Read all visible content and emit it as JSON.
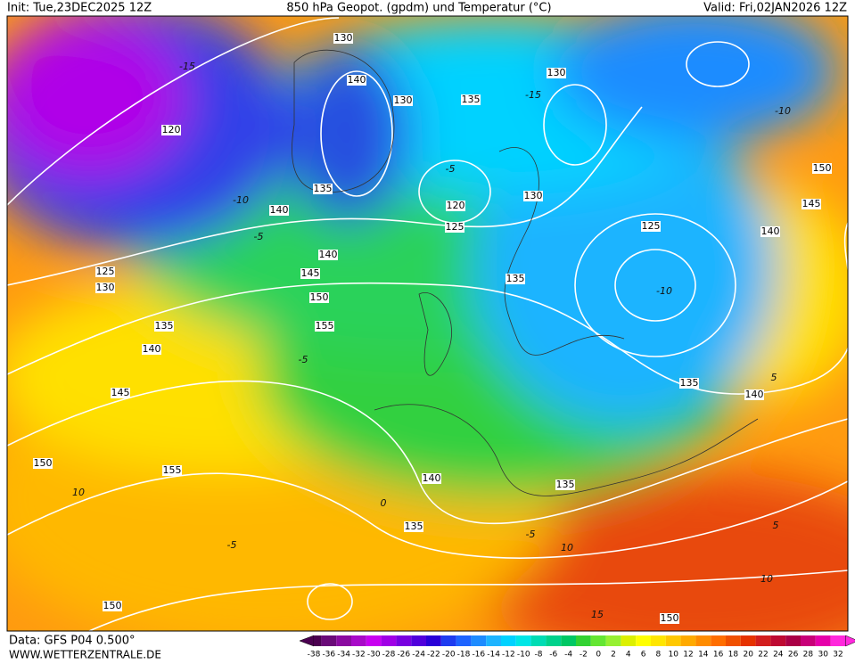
{
  "header": {
    "init": "Init: Tue,23DEC2025 12Z",
    "title": "850 hPa Geopot. (gpdm) und Temperatur (°C)",
    "valid": "Valid: Fri,02JAN2026 12Z"
  },
  "footer": {
    "data": "Data: GFS P04 0.500°",
    "site": "WWW.WETTERZENTRALE.DE"
  },
  "colorbar": {
    "labels": [
      -38,
      -36,
      -34,
      -32,
      -30,
      -28,
      -26,
      -24,
      -22,
      -20,
      -18,
      -16,
      -14,
      -12,
      -10,
      -8,
      -6,
      -4,
      -2,
      0,
      2,
      4,
      6,
      8,
      10,
      12,
      14,
      16,
      18,
      20,
      22,
      24,
      26,
      28,
      30,
      32
    ],
    "colors": [
      "#4b0050",
      "#6a0a78",
      "#8a0aa0",
      "#a80ac8",
      "#c800f0",
      "#a000e6",
      "#7800e0",
      "#5000dc",
      "#2800d8",
      "#1e3cf0",
      "#1e64ff",
      "#1e8cff",
      "#1eb4ff",
      "#00d2ff",
      "#00e6e6",
      "#00dcb4",
      "#00d28c",
      "#00c864",
      "#32d232",
      "#64e632",
      "#96f032",
      "#dcf000",
      "#ffff00",
      "#ffe600",
      "#ffc800",
      "#ffaa00",
      "#ff8c00",
      "#ff6e00",
      "#f05000",
      "#e63200",
      "#d21e1e",
      "#be0a32",
      "#aa0046",
      "#c80078",
      "#e600aa",
      "#ff28dc"
    ]
  },
  "geopotential_labels": [
    "130",
    "140",
    "130",
    "135",
    "130",
    "120",
    "140",
    "135",
    "120",
    "125",
    "130",
    "125",
    "150",
    "145",
    "140",
    "140",
    "145",
    "125",
    "130",
    "150",
    "155",
    "135",
    "140",
    "135",
    "145",
    "135",
    "140",
    "150",
    "155",
    "140",
    "135",
    "135",
    "150",
    "150"
  ],
  "temperature_labels": [
    "-15",
    "-15",
    "-10",
    "-5",
    "-10",
    "-10",
    "-5",
    "-5",
    "0",
    "-5",
    "5",
    "10",
    "5",
    "10",
    "-5",
    "10",
    "15"
  ]
}
